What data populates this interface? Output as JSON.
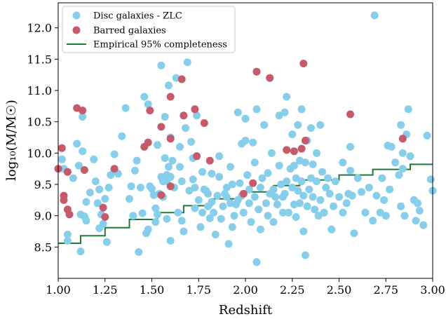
{
  "colors": {
    "disc": "#87ceeb",
    "barred": "#c45a6a",
    "completeness": "#1f7a3a",
    "axis": "#000000",
    "legend_border": "#cccccc"
  },
  "chart_data": {
    "type": "scatter",
    "xlabel": "Redshift",
    "ylabel": "log₁₀(M/M☉)",
    "xlim": [
      1.0,
      3.0
    ],
    "ylim": [
      8.0,
      12.4
    ],
    "xticks": [
      "1.00",
      "1.25",
      "1.50",
      "1.75",
      "2.00",
      "2.25",
      "2.50",
      "2.75",
      "3.00"
    ],
    "yticks": [
      "8.5",
      "9.0",
      "9.5",
      "10.0",
      "10.5",
      "11.0",
      "11.5",
      "12.0"
    ],
    "legend_position": "top-left",
    "grid": false,
    "series": [
      {
        "name": "Disc galaxies - ZLC",
        "kind": "scatter",
        "points": [
          [
            1.02,
            9.9
          ],
          [
            1.03,
            9.75
          ],
          [
            1.05,
            8.7
          ],
          [
            1.05,
            8.6
          ],
          [
            1.08,
            9.6
          ],
          [
            1.1,
            10.15
          ],
          [
            1.11,
            9.8
          ],
          [
            1.12,
            9.02
          ],
          [
            1.12,
            8.43
          ],
          [
            1.13,
            10.58
          ],
          [
            1.13,
            10.03
          ],
          [
            1.14,
            8.99
          ],
          [
            1.15,
            9.22
          ],
          [
            1.15,
            8.92
          ],
          [
            1.17,
            9.37
          ],
          [
            1.19,
            9.9
          ],
          [
            1.2,
            9.55
          ],
          [
            1.21,
            9.2
          ],
          [
            1.22,
            9.42
          ],
          [
            1.22,
            8.8
          ],
          [
            1.23,
            9.02
          ],
          [
            1.24,
            8.87
          ],
          [
            1.25,
            9.27
          ],
          [
            1.26,
            8.58
          ],
          [
            1.27,
            9.45
          ],
          [
            1.28,
            9.65
          ],
          [
            1.3,
            9.72
          ],
          [
            1.3,
            9.98
          ],
          [
            1.32,
            9.67
          ],
          [
            1.34,
            10.27
          ],
          [
            1.36,
            10.72
          ],
          [
            1.38,
            9.27
          ],
          [
            1.39,
            9.47
          ],
          [
            1.4,
            9.0
          ],
          [
            1.41,
            9.72
          ],
          [
            1.42,
            9.88
          ],
          [
            1.43,
            8.42
          ],
          [
            1.44,
            9.45
          ],
          [
            1.45,
            9.04
          ],
          [
            1.46,
            10.9
          ],
          [
            1.47,
            8.72
          ],
          [
            1.48,
            10.78
          ],
          [
            1.48,
            8.78
          ],
          [
            1.49,
            9.47
          ],
          [
            1.5,
            9.43
          ],
          [
            1.51,
            9.33
          ],
          [
            1.52,
            9.12
          ],
          [
            1.52,
            8.9
          ],
          [
            1.53,
            10.13
          ],
          [
            1.53,
            9.02
          ],
          [
            1.54,
            9.35
          ],
          [
            1.55,
            11.4
          ],
          [
            1.55,
            9.62
          ],
          [
            1.56,
            9.55
          ],
          [
            1.56,
            9.3
          ],
          [
            1.57,
            10.58
          ],
          [
            1.57,
            9.92
          ],
          [
            1.58,
            9.65
          ],
          [
            1.58,
            9.55
          ],
          [
            1.58,
            8.95
          ],
          [
            1.59,
            11.08
          ],
          [
            1.59,
            9.78
          ],
          [
            1.6,
            10.25
          ],
          [
            1.6,
            9.62
          ],
          [
            1.6,
            8.6
          ],
          [
            1.61,
            9.88
          ],
          [
            1.62,
            9.45
          ],
          [
            1.63,
            11.2
          ],
          [
            1.64,
            9.05
          ],
          [
            1.65,
            10.1
          ],
          [
            1.65,
            9.78
          ],
          [
            1.66,
            9.55
          ],
          [
            1.66,
            8.92
          ],
          [
            1.67,
            8.75
          ],
          [
            1.68,
            10.4
          ],
          [
            1.69,
            11.45
          ],
          [
            1.7,
            9.4
          ],
          [
            1.71,
            10.18
          ],
          [
            1.72,
            9.58
          ],
          [
            1.72,
            9.92
          ],
          [
            1.73,
            9.12
          ],
          [
            1.73,
            9.45
          ],
          [
            1.74,
            10.6
          ],
          [
            1.75,
            9.25
          ],
          [
            1.76,
            8.82
          ],
          [
            1.77,
            9.7
          ],
          [
            1.77,
            9.05
          ],
          [
            1.78,
            9.42
          ],
          [
            1.79,
            9.4
          ],
          [
            1.8,
            9.35
          ],
          [
            1.8,
            9.15
          ],
          [
            1.81,
            8.96
          ],
          [
            1.82,
            9.67
          ],
          [
            1.82,
            9.22
          ],
          [
            1.83,
            9.05
          ],
          [
            1.84,
            8.7
          ],
          [
            1.85,
            9.32
          ],
          [
            1.86,
            9.95
          ],
          [
            1.86,
            9.62
          ],
          [
            1.87,
            8.95
          ],
          [
            1.88,
            9.15
          ],
          [
            1.89,
            9.35
          ],
          [
            1.9,
            9.45
          ],
          [
            1.9,
            9.3
          ],
          [
            1.91,
            8.55
          ],
          [
            1.92,
            9.78
          ],
          [
            1.92,
            9.2
          ],
          [
            1.93,
            8.82
          ],
          [
            1.93,
            9.5
          ],
          [
            1.94,
            9.0
          ],
          [
            1.95,
            9.18
          ],
          [
            1.96,
            10.65
          ],
          [
            1.96,
            9.25
          ],
          [
            1.97,
            9.52
          ],
          [
            1.98,
            10.15
          ],
          [
            1.98,
            9.32
          ],
          [
            1.99,
            9.05
          ],
          [
            2.0,
            10.2
          ],
          [
            2.0,
            10.55
          ],
          [
            2.01,
            9.65
          ],
          [
            2.02,
            9.42
          ],
          [
            2.02,
            9.2
          ],
          [
            2.03,
            8.9
          ],
          [
            2.04,
            10.17
          ],
          [
            2.05,
            9.85
          ],
          [
            2.05,
            9.3
          ],
          [
            2.06,
            8.26
          ],
          [
            2.06,
            10.7
          ],
          [
            2.07,
            9.1
          ],
          [
            2.08,
            9.45
          ],
          [
            2.08,
            8.78
          ],
          [
            2.09,
            9.6
          ],
          [
            2.1,
            10.45
          ],
          [
            2.11,
            9.2
          ],
          [
            2.12,
            9.0
          ],
          [
            2.12,
            9.68
          ],
          [
            2.13,
            9.35
          ],
          [
            2.14,
            10.0
          ],
          [
            2.15,
            9.42
          ],
          [
            2.15,
            8.9
          ],
          [
            2.16,
            9.3
          ],
          [
            2.17,
            9.18
          ],
          [
            2.18,
            10.6
          ],
          [
            2.18,
            9.8
          ],
          [
            2.19,
            9.5
          ],
          [
            2.2,
            9.3
          ],
          [
            2.2,
            9.05
          ],
          [
            2.21,
            10.65
          ],
          [
            2.21,
            9.35
          ],
          [
            2.22,
            9.55
          ],
          [
            2.22,
            10.9
          ],
          [
            2.23,
            9.05
          ],
          [
            2.24,
            9.75
          ],
          [
            2.25,
            10.3
          ],
          [
            2.25,
            9.45
          ],
          [
            2.26,
            9.8
          ],
          [
            2.26,
            9.18
          ],
          [
            2.27,
            9.6
          ],
          [
            2.27,
            8.98
          ],
          [
            2.28,
            10.45
          ],
          [
            2.28,
            9.4
          ],
          [
            2.29,
            9.88
          ],
          [
            2.29,
            9.2
          ],
          [
            2.3,
            10.7
          ],
          [
            2.3,
            9.55
          ],
          [
            2.31,
            9.32
          ],
          [
            2.31,
            8.75
          ],
          [
            2.32,
            8.37
          ],
          [
            2.32,
            9.85
          ],
          [
            2.33,
            9.15
          ],
          [
            2.33,
            10.2
          ],
          [
            2.34,
            9.42
          ],
          [
            2.35,
            9.6
          ],
          [
            2.35,
            10.4
          ],
          [
            2.36,
            9.3
          ],
          [
            2.36,
            9.82
          ],
          [
            2.37,
            9.1
          ],
          [
            2.38,
            9.55
          ],
          [
            2.38,
            10.0
          ],
          [
            2.39,
            9.0
          ],
          [
            2.4,
            9.25
          ],
          [
            2.4,
            10.45
          ],
          [
            2.41,
            9.7
          ],
          [
            2.42,
            9.05
          ],
          [
            2.43,
            9.45
          ],
          [
            2.44,
            9.6
          ],
          [
            2.45,
            9.35
          ],
          [
            2.46,
            8.78
          ],
          [
            2.47,
            9.15
          ],
          [
            2.48,
            9.55
          ],
          [
            2.5,
            9.3
          ],
          [
            2.52,
            9.85
          ],
          [
            2.52,
            9.05
          ],
          [
            2.54,
            9.2
          ],
          [
            2.55,
            9.35
          ],
          [
            2.56,
            10.1
          ],
          [
            2.56,
            9.72
          ],
          [
            2.57,
            9.32
          ],
          [
            2.58,
            8.72
          ],
          [
            2.6,
            9.6
          ],
          [
            2.62,
            9.38
          ],
          [
            2.64,
            9.05
          ],
          [
            2.66,
            9.45
          ],
          [
            2.68,
            8.92
          ],
          [
            2.69,
            12.2
          ],
          [
            2.7,
            9.32
          ],
          [
            2.72,
            9.05
          ],
          [
            2.73,
            9.6
          ],
          [
            2.74,
            9.25
          ],
          [
            2.75,
            9.0
          ],
          [
            2.76,
            10.12
          ],
          [
            2.77,
            9.42
          ],
          [
            2.78,
            10.1
          ],
          [
            2.8,
            9.85
          ],
          [
            2.82,
            9.65
          ],
          [
            2.83,
            9.15
          ],
          [
            2.83,
            10.45
          ],
          [
            2.84,
            10.0
          ],
          [
            2.84,
            9.75
          ],
          [
            2.85,
            9.0
          ],
          [
            2.86,
            10.3
          ],
          [
            2.87,
            10.7
          ],
          [
            2.88,
            9.95
          ],
          [
            2.9,
            9.25
          ],
          [
            2.91,
            8.92
          ],
          [
            2.92,
            9.2
          ],
          [
            2.93,
            9.08
          ],
          [
            2.95,
            8.85
          ],
          [
            2.97,
            10.28
          ],
          [
            2.99,
            9.58
          ],
          [
            3.0,
            9.4
          ]
        ]
      },
      {
        "name": "Barred galaxies",
        "kind": "scatter",
        "points": [
          [
            1.0,
            9.75
          ],
          [
            1.02,
            10.08
          ],
          [
            1.03,
            9.32
          ],
          [
            1.03,
            9.25
          ],
          [
            1.05,
            9.7
          ],
          [
            1.05,
            9.1
          ],
          [
            1.06,
            9.02
          ],
          [
            1.1,
            10.72
          ],
          [
            1.13,
            10.68
          ],
          [
            1.14,
            9.73
          ],
          [
            1.24,
            9.13
          ],
          [
            1.25,
            8.98
          ],
          [
            1.3,
            9.75
          ],
          [
            1.46,
            10.1
          ],
          [
            1.48,
            10.17
          ],
          [
            1.49,
            10.68
          ],
          [
            1.55,
            10.42
          ],
          [
            1.55,
            9.33
          ],
          [
            1.6,
            10.9
          ],
          [
            1.6,
            10.23
          ],
          [
            1.6,
            9.47
          ],
          [
            1.66,
            11.18
          ],
          [
            1.67,
            10.6
          ],
          [
            1.73,
            10.7
          ],
          [
            1.74,
            9.95
          ],
          [
            1.78,
            10.48
          ],
          [
            1.81,
            9.88
          ],
          [
            1.99,
            9.35
          ],
          [
            2.04,
            9.52
          ],
          [
            2.06,
            11.3
          ],
          [
            2.13,
            11.2
          ],
          [
            2.22,
            10.05
          ],
          [
            2.26,
            10.03
          ],
          [
            2.3,
            10.07
          ],
          [
            2.31,
            11.43
          ],
          [
            2.32,
            10.2
          ],
          [
            2.56,
            10.62
          ],
          [
            2.84,
            10.23
          ]
        ]
      },
      {
        "name": "Empirical 95% completeness",
        "kind": "step",
        "points": [
          [
            1.0,
            8.56
          ],
          [
            1.12,
            8.56
          ],
          [
            1.12,
            8.68
          ],
          [
            1.25,
            8.68
          ],
          [
            1.25,
            8.81
          ],
          [
            1.38,
            8.81
          ],
          [
            1.38,
            8.94
          ],
          [
            1.53,
            8.94
          ],
          [
            1.53,
            9.05
          ],
          [
            1.67,
            9.05
          ],
          [
            1.67,
            9.16
          ],
          [
            1.82,
            9.16
          ],
          [
            1.82,
            9.27
          ],
          [
            1.98,
            9.27
          ],
          [
            1.98,
            9.38
          ],
          [
            2.15,
            9.38
          ],
          [
            2.15,
            9.48
          ],
          [
            2.29,
            9.48
          ],
          [
            2.29,
            9.57
          ],
          [
            2.5,
            9.57
          ],
          [
            2.5,
            9.65
          ],
          [
            2.68,
            9.65
          ],
          [
            2.68,
            9.74
          ],
          [
            2.88,
            9.74
          ],
          [
            2.88,
            9.82
          ],
          [
            3.0,
            9.82
          ]
        ]
      }
    ]
  }
}
